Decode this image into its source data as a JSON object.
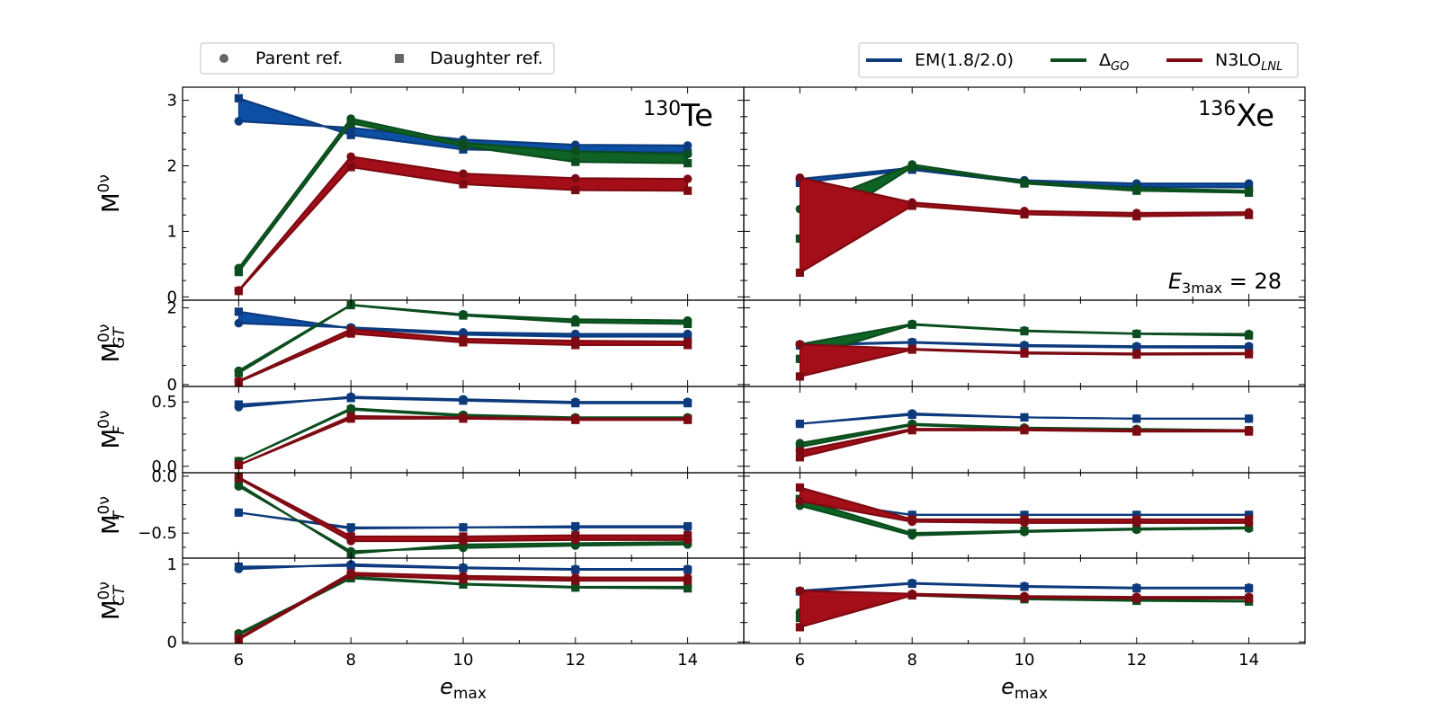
{
  "colors": {
    "em": "#0c3a7c",
    "delta": "#0b4d1e",
    "n3lo": "#7d0a12",
    "em_fill": "#0d4fa5",
    "delta_fill": "#0e6325",
    "n3lo_fill": "#a30e18"
  },
  "legends": {
    "markers": [
      {
        "label": "Parent ref.",
        "marker": "circle"
      },
      {
        "label": "Daughter ref.",
        "marker": "square"
      }
    ],
    "series": [
      {
        "key": "em",
        "label": "EM(1.8/2.0)",
        "sub": ""
      },
      {
        "key": "delta",
        "label": "Δ",
        "sub": "GO"
      },
      {
        "key": "n3lo",
        "label": "N3LO",
        "sub": "LNL"
      }
    ]
  },
  "chart_data": {
    "type": "line",
    "xlabel": "e",
    "xlabel_sub": "max",
    "x": [
      6,
      8,
      10,
      12,
      14
    ],
    "xlim": [
      5,
      15
    ],
    "columns": [
      {
        "key": "te",
        "title_sup": "130",
        "title": "Te"
      },
      {
        "key": "xe",
        "title_sup": "136",
        "title": "Xe",
        "annotation": "E",
        "annotation_sub": "3max",
        "annotation_rest": " = 28"
      }
    ],
    "rows": [
      {
        "key": "total",
        "ylabel": "M",
        "ylabel_sup": "0ν",
        "ylabel_sub": "",
        "ylim": [
          -0.05,
          3.2
        ],
        "yticks": [
          0,
          1,
          2,
          3
        ],
        "yticklabels": [
          "0",
          "1",
          "2",
          "3"
        ],
        "data": {
          "te": {
            "em": {
              "parent": [
                2.68,
                2.58,
                2.4,
                2.32,
                2.31
              ],
              "daughter": [
                3.03,
                2.47,
                2.25,
                2.22,
                2.2
              ]
            },
            "delta": {
              "parent": [
                0.44,
                2.72,
                2.35,
                2.22,
                2.18
              ],
              "daughter": [
                0.38,
                2.65,
                2.3,
                2.06,
                2.04
              ]
            },
            "n3lo": {
              "parent": [
                0.1,
                2.14,
                1.88,
                1.81,
                1.8
              ],
              "daughter": [
                0.09,
                1.98,
                1.72,
                1.63,
                1.62
              ]
            }
          },
          "xe": {
            "em": {
              "parent": [
                1.8,
                1.97,
                1.78,
                1.73,
                1.73
              ],
              "daughter": [
                1.74,
                1.94,
                1.74,
                1.68,
                1.67
              ]
            },
            "delta": {
              "parent": [
                1.34,
                2.02,
                1.76,
                1.66,
                1.62
              ],
              "daughter": [
                0.89,
                1.98,
                1.73,
                1.62,
                1.59
              ]
            },
            "n3lo": {
              "parent": [
                1.82,
                1.44,
                1.31,
                1.28,
                1.29
              ],
              "daughter": [
                0.37,
                1.39,
                1.26,
                1.23,
                1.25
              ]
            }
          }
        }
      },
      {
        "key": "gt",
        "ylabel": "M",
        "ylabel_sup": "0ν",
        "ylabel_sub": "GT",
        "ylim": [
          -0.05,
          2.2
        ],
        "yticks": [
          0,
          2
        ],
        "yticklabels": [
          "0",
          "2"
        ],
        "data": {
          "te": {
            "em": {
              "parent": [
                1.6,
                1.49,
                1.36,
                1.32,
                1.32
              ],
              "daughter": [
                1.9,
                1.46,
                1.3,
                1.25,
                1.25
              ]
            },
            "delta": {
              "parent": [
                0.36,
                2.08,
                1.83,
                1.7,
                1.67
              ],
              "daughter": [
                0.3,
                2.07,
                1.8,
                1.62,
                1.58
              ]
            },
            "n3lo": {
              "parent": [
                0.09,
                1.44,
                1.19,
                1.14,
                1.12
              ],
              "daughter": [
                0.07,
                1.33,
                1.1,
                1.03,
                1.03
              ]
            }
          },
          "xe": {
            "em": {
              "parent": [
                1.04,
                1.11,
                1.03,
                1.0,
                1.0
              ],
              "daughter": [
                1.02,
                1.09,
                1.0,
                0.97,
                0.96
              ]
            },
            "delta": {
              "parent": [
                1.05,
                1.58,
                1.41,
                1.33,
                1.32
              ],
              "daughter": [
                0.67,
                1.56,
                1.39,
                1.32,
                1.28
              ]
            },
            "n3lo": {
              "parent": [
                1.05,
                0.93,
                0.84,
                0.81,
                0.82
              ],
              "daughter": [
                0.21,
                0.91,
                0.81,
                0.78,
                0.79
              ]
            }
          }
        }
      },
      {
        "key": "f",
        "ylabel": "M",
        "ylabel_sup": "0ν",
        "ylabel_sub": "F",
        "ylim": [
          -0.05,
          0.62
        ],
        "yticks": [
          0,
          0.5
        ],
        "yticklabels": [
          "0.0",
          "0.5"
        ],
        "data": {
          "te": {
            "em": {
              "parent": [
                0.46,
                0.54,
                0.52,
                0.5,
                0.5
              ],
              "daughter": [
                0.48,
                0.53,
                0.51,
                0.49,
                0.49
              ]
            },
            "delta": {
              "parent": [
                0.04,
                0.45,
                0.4,
                0.38,
                0.38
              ],
              "daughter": [
                0.04,
                0.44,
                0.39,
                0.37,
                0.37
              ]
            },
            "n3lo": {
              "parent": [
                0.01,
                0.39,
                0.38,
                0.37,
                0.37
              ],
              "daughter": [
                0.01,
                0.37,
                0.37,
                0.36,
                0.36
              ]
            }
          },
          "xe": {
            "em": {
              "parent": [
                0.33,
                0.41,
                0.38,
                0.37,
                0.37
              ],
              "daughter": [
                0.33,
                0.4,
                0.38,
                0.37,
                0.37
              ]
            },
            "delta": {
              "parent": [
                0.18,
                0.33,
                0.3,
                0.29,
                0.28
              ],
              "daughter": [
                0.15,
                0.32,
                0.29,
                0.28,
                0.28
              ]
            },
            "n3lo": {
              "parent": [
                0.12,
                0.29,
                0.29,
                0.28,
                0.28
              ],
              "daughter": [
                0.07,
                0.28,
                0.28,
                0.27,
                0.27
              ]
            }
          }
        }
      },
      {
        "key": "t",
        "ylabel": "M",
        "ylabel_sup": "0ν",
        "ylabel_sub": "T",
        "ylim": [
          -0.72,
          0.03
        ],
        "yticks": [
          0,
          -0.5
        ],
        "yticklabels": [
          "0.0",
          "−0.5"
        ],
        "data": {
          "te": {
            "em": {
              "parent": [
                -0.32,
                -0.46,
                -0.45,
                -0.45,
                -0.45
              ],
              "daughter": [
                -0.32,
                -0.45,
                -0.45,
                -0.44,
                -0.44
              ]
            },
            "delta": {
              "parent": [
                -0.09,
                -0.66,
                -0.63,
                -0.61,
                -0.6
              ],
              "daughter": [
                -0.07,
                -0.68,
                -0.6,
                -0.59,
                -0.58
              ]
            },
            "n3lo": {
              "parent": [
                -0.02,
                -0.57,
                -0.57,
                -0.56,
                -0.56
              ],
              "daughter": [
                -0.01,
                -0.53,
                -0.53,
                -0.52,
                -0.52
              ]
            }
          },
          "xe": {
            "em": {
              "parent": [
                -0.22,
                -0.34,
                -0.34,
                -0.34,
                -0.34
              ],
              "daughter": [
                -0.2,
                -0.34,
                -0.34,
                -0.34,
                -0.34
              ]
            },
            "delta": {
              "parent": [
                -0.26,
                -0.52,
                -0.49,
                -0.47,
                -0.46
              ],
              "daughter": [
                -0.2,
                -0.5,
                -0.48,
                -0.46,
                -0.45
              ]
            },
            "n3lo": {
              "parent": [
                -0.22,
                -0.4,
                -0.41,
                -0.41,
                -0.41
              ],
              "daughter": [
                -0.1,
                -0.38,
                -0.38,
                -0.38,
                -0.38
              ]
            }
          }
        }
      },
      {
        "key": "ct",
        "ylabel": "M",
        "ylabel_sup": "0ν",
        "ylabel_sub": "CT",
        "ylim": [
          -0.02,
          1.08
        ],
        "yticks": [
          0,
          1
        ],
        "yticklabels": [
          "0",
          "1"
        ],
        "data": {
          "te": {
            "em": {
              "parent": [
                0.94,
                1.0,
                0.96,
                0.94,
                0.94
              ],
              "daughter": [
                0.97,
                0.98,
                0.95,
                0.93,
                0.93
              ]
            },
            "delta": {
              "parent": [
                0.11,
                0.84,
                0.75,
                0.71,
                0.71
              ],
              "daughter": [
                0.09,
                0.82,
                0.74,
                0.7,
                0.69
              ]
            },
            "n3lo": {
              "parent": [
                0.05,
                0.89,
                0.85,
                0.83,
                0.83
              ],
              "daughter": [
                0.03,
                0.86,
                0.81,
                0.79,
                0.79
              ]
            }
          },
          "xe": {
            "em": {
              "parent": [
                0.66,
                0.76,
                0.72,
                0.7,
                0.7
              ],
              "daughter": [
                0.65,
                0.75,
                0.71,
                0.69,
                0.69
              ]
            },
            "delta": {
              "parent": [
                0.38,
                0.61,
                0.56,
                0.54,
                0.53
              ],
              "daughter": [
                0.31,
                0.6,
                0.55,
                0.53,
                0.52
              ]
            },
            "n3lo": {
              "parent": [
                0.66,
                0.62,
                0.59,
                0.58,
                0.58
              ],
              "daughter": [
                0.19,
                0.6,
                0.57,
                0.56,
                0.56
              ]
            }
          }
        }
      }
    ]
  }
}
